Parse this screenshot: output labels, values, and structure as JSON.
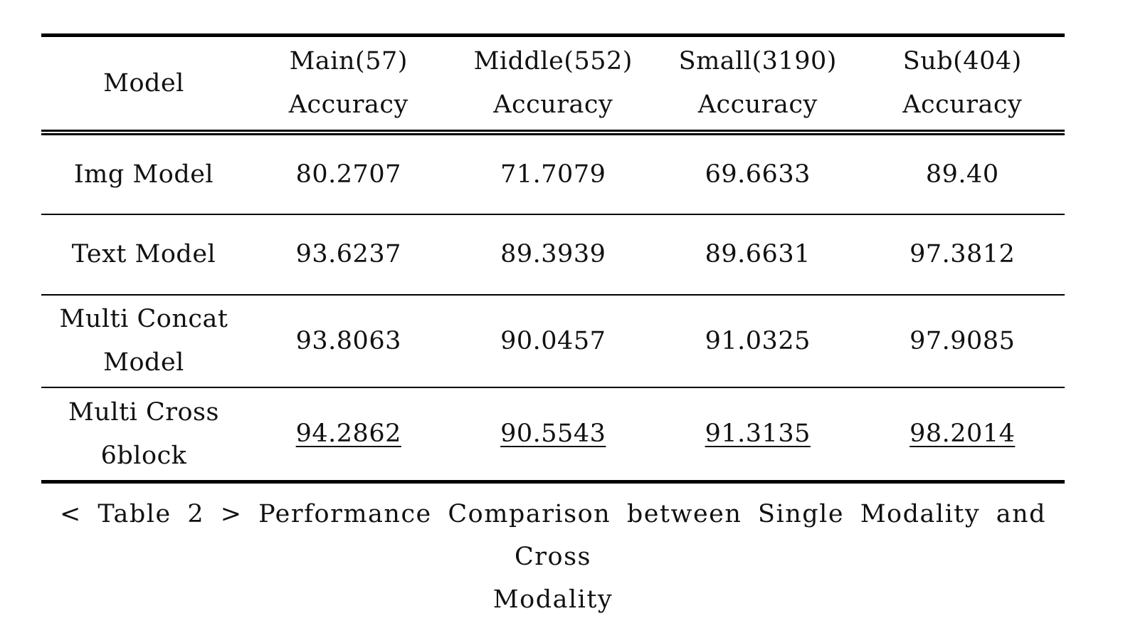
{
  "table": {
    "header": {
      "model": "Model",
      "columns": [
        {
          "name": "Main(57)",
          "metric": "Accuracy"
        },
        {
          "name": "Middle(552)",
          "metric": "Accuracy"
        },
        {
          "name": "Small(3190)",
          "metric": "Accuracy"
        },
        {
          "name": "Sub(404)",
          "metric": "Accuracy"
        }
      ]
    },
    "rows": [
      {
        "model_line1": "Img Model",
        "model_line2": "",
        "values": [
          "80.2707",
          "71.7079",
          "69.6633",
          "89.40"
        ]
      },
      {
        "model_line1": "Text Model",
        "model_line2": "",
        "values": [
          "93.6237",
          "89.3939",
          "89.6631",
          "97.3812"
        ]
      },
      {
        "model_line1": "Multi Concat",
        "model_line2": "Model",
        "values": [
          "93.8063",
          "90.0457",
          "91.0325",
          "97.9085"
        ]
      },
      {
        "model_line1": "Multi Cross",
        "model_line2": "6block",
        "values": [
          "94.2862",
          "90.5543",
          "91.3135",
          "98.2014"
        ]
      }
    ]
  },
  "caption": {
    "line1": "< Table 2 > Performance Comparison between Single Modality and Cross",
    "line2": "Modality"
  }
}
